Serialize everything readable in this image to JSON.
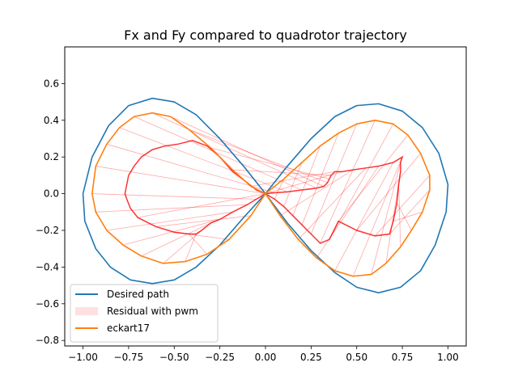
{
  "chart_data": {
    "type": "line",
    "title": "Fx and Fy compared to quadrotor trajectory",
    "xlabel": "",
    "ylabel": "",
    "xlim": [
      -1.1,
      1.1
    ],
    "ylim": [
      -0.83,
      0.8
    ],
    "xticks": [
      -1.0,
      -0.75,
      -0.5,
      -0.25,
      0.0,
      0.25,
      0.5,
      0.75,
      1.0
    ],
    "xtick_labels": [
      "−1.00",
      "−0.75",
      "−0.50",
      "−0.25",
      "0.00",
      "0.25",
      "0.50",
      "0.75",
      "1.00"
    ],
    "yticks": [
      -0.8,
      -0.6,
      -0.4,
      -0.2,
      0.0,
      0.2,
      0.4,
      0.6
    ],
    "ytick_labels": [
      "−0.8",
      "−0.6",
      "−0.4",
      "−0.2",
      "0.0",
      "0.2",
      "0.4",
      "0.6"
    ],
    "grid": false,
    "legend_placement": "lower left",
    "series": [
      {
        "name": "Desired path",
        "kind": "line",
        "color": "#1f77b4",
        "x": [
          0.0,
          0.12,
          0.25,
          0.38,
          0.5,
          0.62,
          0.75,
          0.86,
          0.95,
          1.0,
          0.99,
          0.93,
          0.85,
          0.74,
          0.62,
          0.5,
          0.38,
          0.25,
          0.12,
          0.0,
          -0.12,
          -0.25,
          -0.38,
          -0.5,
          -0.62,
          -0.75,
          -0.86,
          -0.95,
          -1.0,
          -0.99,
          -0.93,
          -0.85,
          -0.74,
          -0.62,
          -0.5,
          -0.38,
          -0.25,
          -0.12,
          0.0
        ],
        "y": [
          0.0,
          0.15,
          0.3,
          0.42,
          0.48,
          0.49,
          0.45,
          0.36,
          0.22,
          0.05,
          -0.1,
          -0.28,
          -0.42,
          -0.51,
          -0.54,
          -0.51,
          -0.43,
          -0.31,
          -0.16,
          0.0,
          0.15,
          0.3,
          0.43,
          0.5,
          0.52,
          0.48,
          0.37,
          0.2,
          0.0,
          -0.15,
          -0.3,
          -0.4,
          -0.47,
          -0.49,
          -0.47,
          -0.4,
          -0.28,
          -0.13,
          0.0
        ]
      },
      {
        "name": "Residual with pwm",
        "kind": "residual",
        "color": "#ff0000",
        "x": [
          0.0,
          0.05,
          0.1,
          0.15,
          0.2,
          0.25,
          0.3,
          0.35,
          0.4,
          0.5,
          0.6,
          0.68,
          0.7,
          0.72,
          0.73,
          0.74,
          0.74,
          0.75,
          0.7,
          0.62,
          0.55,
          0.48,
          0.42,
          0.38,
          0.36,
          0.35,
          0.34,
          0.32,
          0.28,
          0.2,
          0.12,
          0.05,
          0.0,
          -0.05,
          -0.1,
          -0.18,
          -0.25,
          -0.3,
          -0.35,
          -0.38,
          -0.42,
          -0.5,
          -0.6,
          -0.7,
          -0.74,
          -0.76,
          -0.77,
          -0.76,
          -0.75,
          -0.72,
          -0.68,
          -0.62,
          -0.55,
          -0.48,
          -0.4,
          -0.32,
          -0.25,
          -0.18,
          -0.1,
          -0.05,
          0.0
        ],
        "y": [
          0.0,
          -0.03,
          -0.07,
          -0.12,
          -0.17,
          -0.22,
          -0.27,
          -0.25,
          -0.15,
          -0.2,
          -0.23,
          -0.22,
          -0.15,
          -0.05,
          0.05,
          0.12,
          0.17,
          0.2,
          0.17,
          0.15,
          0.14,
          0.13,
          0.12,
          0.12,
          0.1,
          0.08,
          0.06,
          0.04,
          0.03,
          0.02,
          0.01,
          0.005,
          0.0,
          -0.03,
          -0.06,
          -0.1,
          -0.14,
          -0.16,
          -0.2,
          -0.22,
          -0.22,
          -0.21,
          -0.18,
          -0.13,
          -0.08,
          -0.03,
          0.0,
          0.05,
          0.1,
          0.15,
          0.2,
          0.24,
          0.26,
          0.27,
          0.29,
          0.26,
          0.2,
          0.12,
          0.06,
          0.02,
          0.0
        ]
      },
      {
        "name": "eckart17",
        "kind": "line",
        "color": "#ff7f0e",
        "x": [
          0.0,
          0.1,
          0.2,
          0.3,
          0.4,
          0.5,
          0.6,
          0.7,
          0.78,
          0.85,
          0.9,
          0.9,
          0.86,
          0.8,
          0.74,
          0.66,
          0.58,
          0.48,
          0.38,
          0.28,
          0.18,
          0.08,
          0.0,
          -0.08,
          -0.18,
          -0.3,
          -0.42,
          -0.52,
          -0.62,
          -0.72,
          -0.8,
          -0.87,
          -0.93,
          -0.95,
          -0.93,
          -0.87,
          -0.78,
          -0.68,
          -0.56,
          -0.44,
          -0.32,
          -0.2,
          -0.08,
          0.0
        ],
        "y": [
          0.0,
          0.08,
          0.17,
          0.26,
          0.33,
          0.38,
          0.4,
          0.38,
          0.32,
          0.22,
          0.1,
          0.02,
          -0.1,
          -0.2,
          -0.29,
          -0.38,
          -0.44,
          -0.45,
          -0.42,
          -0.35,
          -0.25,
          -0.12,
          0.0,
          0.04,
          0.13,
          0.25,
          0.35,
          0.42,
          0.44,
          0.42,
          0.36,
          0.27,
          0.15,
          0.0,
          -0.1,
          -0.2,
          -0.28,
          -0.34,
          -0.38,
          -0.37,
          -0.33,
          -0.25,
          -0.12,
          0.0
        ]
      }
    ]
  }
}
